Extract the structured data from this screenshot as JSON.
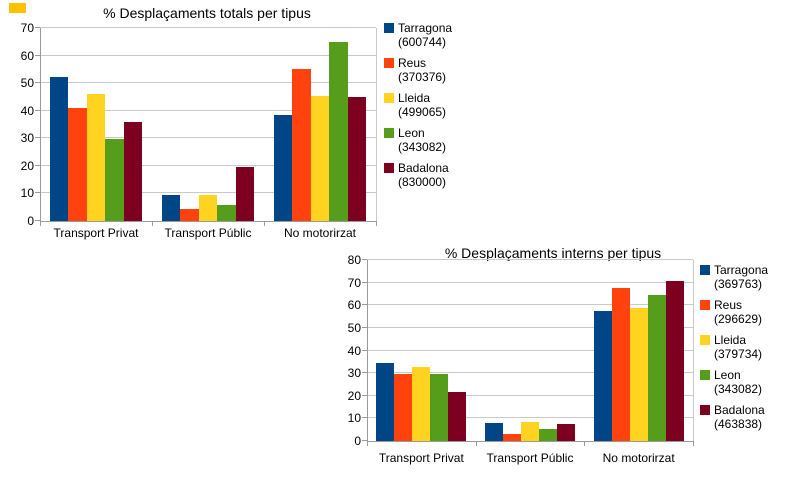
{
  "decor": {
    "corner_marker_color": "#ffc000",
    "grid_color": "#c9c9c9",
    "axis_color": "#9a9a9a",
    "background": "#ffffff"
  },
  "chart_data": [
    {
      "type": "bar",
      "title": "% Desplaçaments totals per tipus",
      "categories": [
        "Transport Privat",
        "Transport Públic",
        "No motorirzat"
      ],
      "yticks": [
        0,
        10,
        20,
        30,
        40,
        50,
        60,
        70
      ],
      "ylim": [
        0,
        70
      ],
      "grid": true,
      "legend_position": "right",
      "series": [
        {
          "name": "Tarragona",
          "count_label": "(600744)",
          "color": "#004586",
          "values": [
            52.3,
            9.6,
            38.4
          ]
        },
        {
          "name": "Reus",
          "count_label": "(370376)",
          "color": "#FF420E",
          "values": [
            41.0,
            4.3,
            55.2
          ]
        },
        {
          "name": "Lleida",
          "count_label": "(499065)",
          "color": "#FFD320",
          "values": [
            45.9,
            9.4,
            45.2
          ]
        },
        {
          "name": "Leon",
          "count_label": "(343082)",
          "color": "#579D1C",
          "values": [
            29.8,
            5.7,
            64.9
          ]
        },
        {
          "name": "Badalona",
          "count_label": "(830000)",
          "color": "#7E0021",
          "values": [
            35.9,
            19.7,
            44.8
          ]
        }
      ]
    },
    {
      "type": "bar",
      "title": "% Desplaçaments interns per tipus",
      "categories": [
        "Transport Privat",
        "Transport Públic",
        "No motorirzat"
      ],
      "yticks": [
        0,
        10,
        20,
        30,
        40,
        50,
        60,
        70,
        80
      ],
      "ylim": [
        0,
        80
      ],
      "grid": true,
      "legend_position": "right",
      "series": [
        {
          "name": "Tarragona",
          "count_label": "(369763)",
          "color": "#004586",
          "values": [
            34.4,
            8.1,
            57.5
          ]
        },
        {
          "name": "Reus",
          "count_label": "(296629)",
          "color": "#FF420E",
          "values": [
            29.8,
            2.9,
            67.6
          ]
        },
        {
          "name": "Lleida",
          "count_label": "(379734)",
          "color": "#FFD320",
          "values": [
            32.8,
            8.5,
            59.0
          ]
        },
        {
          "name": "Leon",
          "count_label": "(343082)",
          "color": "#579D1C",
          "values": [
            29.8,
            5.5,
            64.6
          ]
        },
        {
          "name": "Badalona",
          "count_label": "(463838)",
          "color": "#7E0021",
          "values": [
            21.8,
            7.7,
            70.7
          ]
        }
      ]
    }
  ]
}
